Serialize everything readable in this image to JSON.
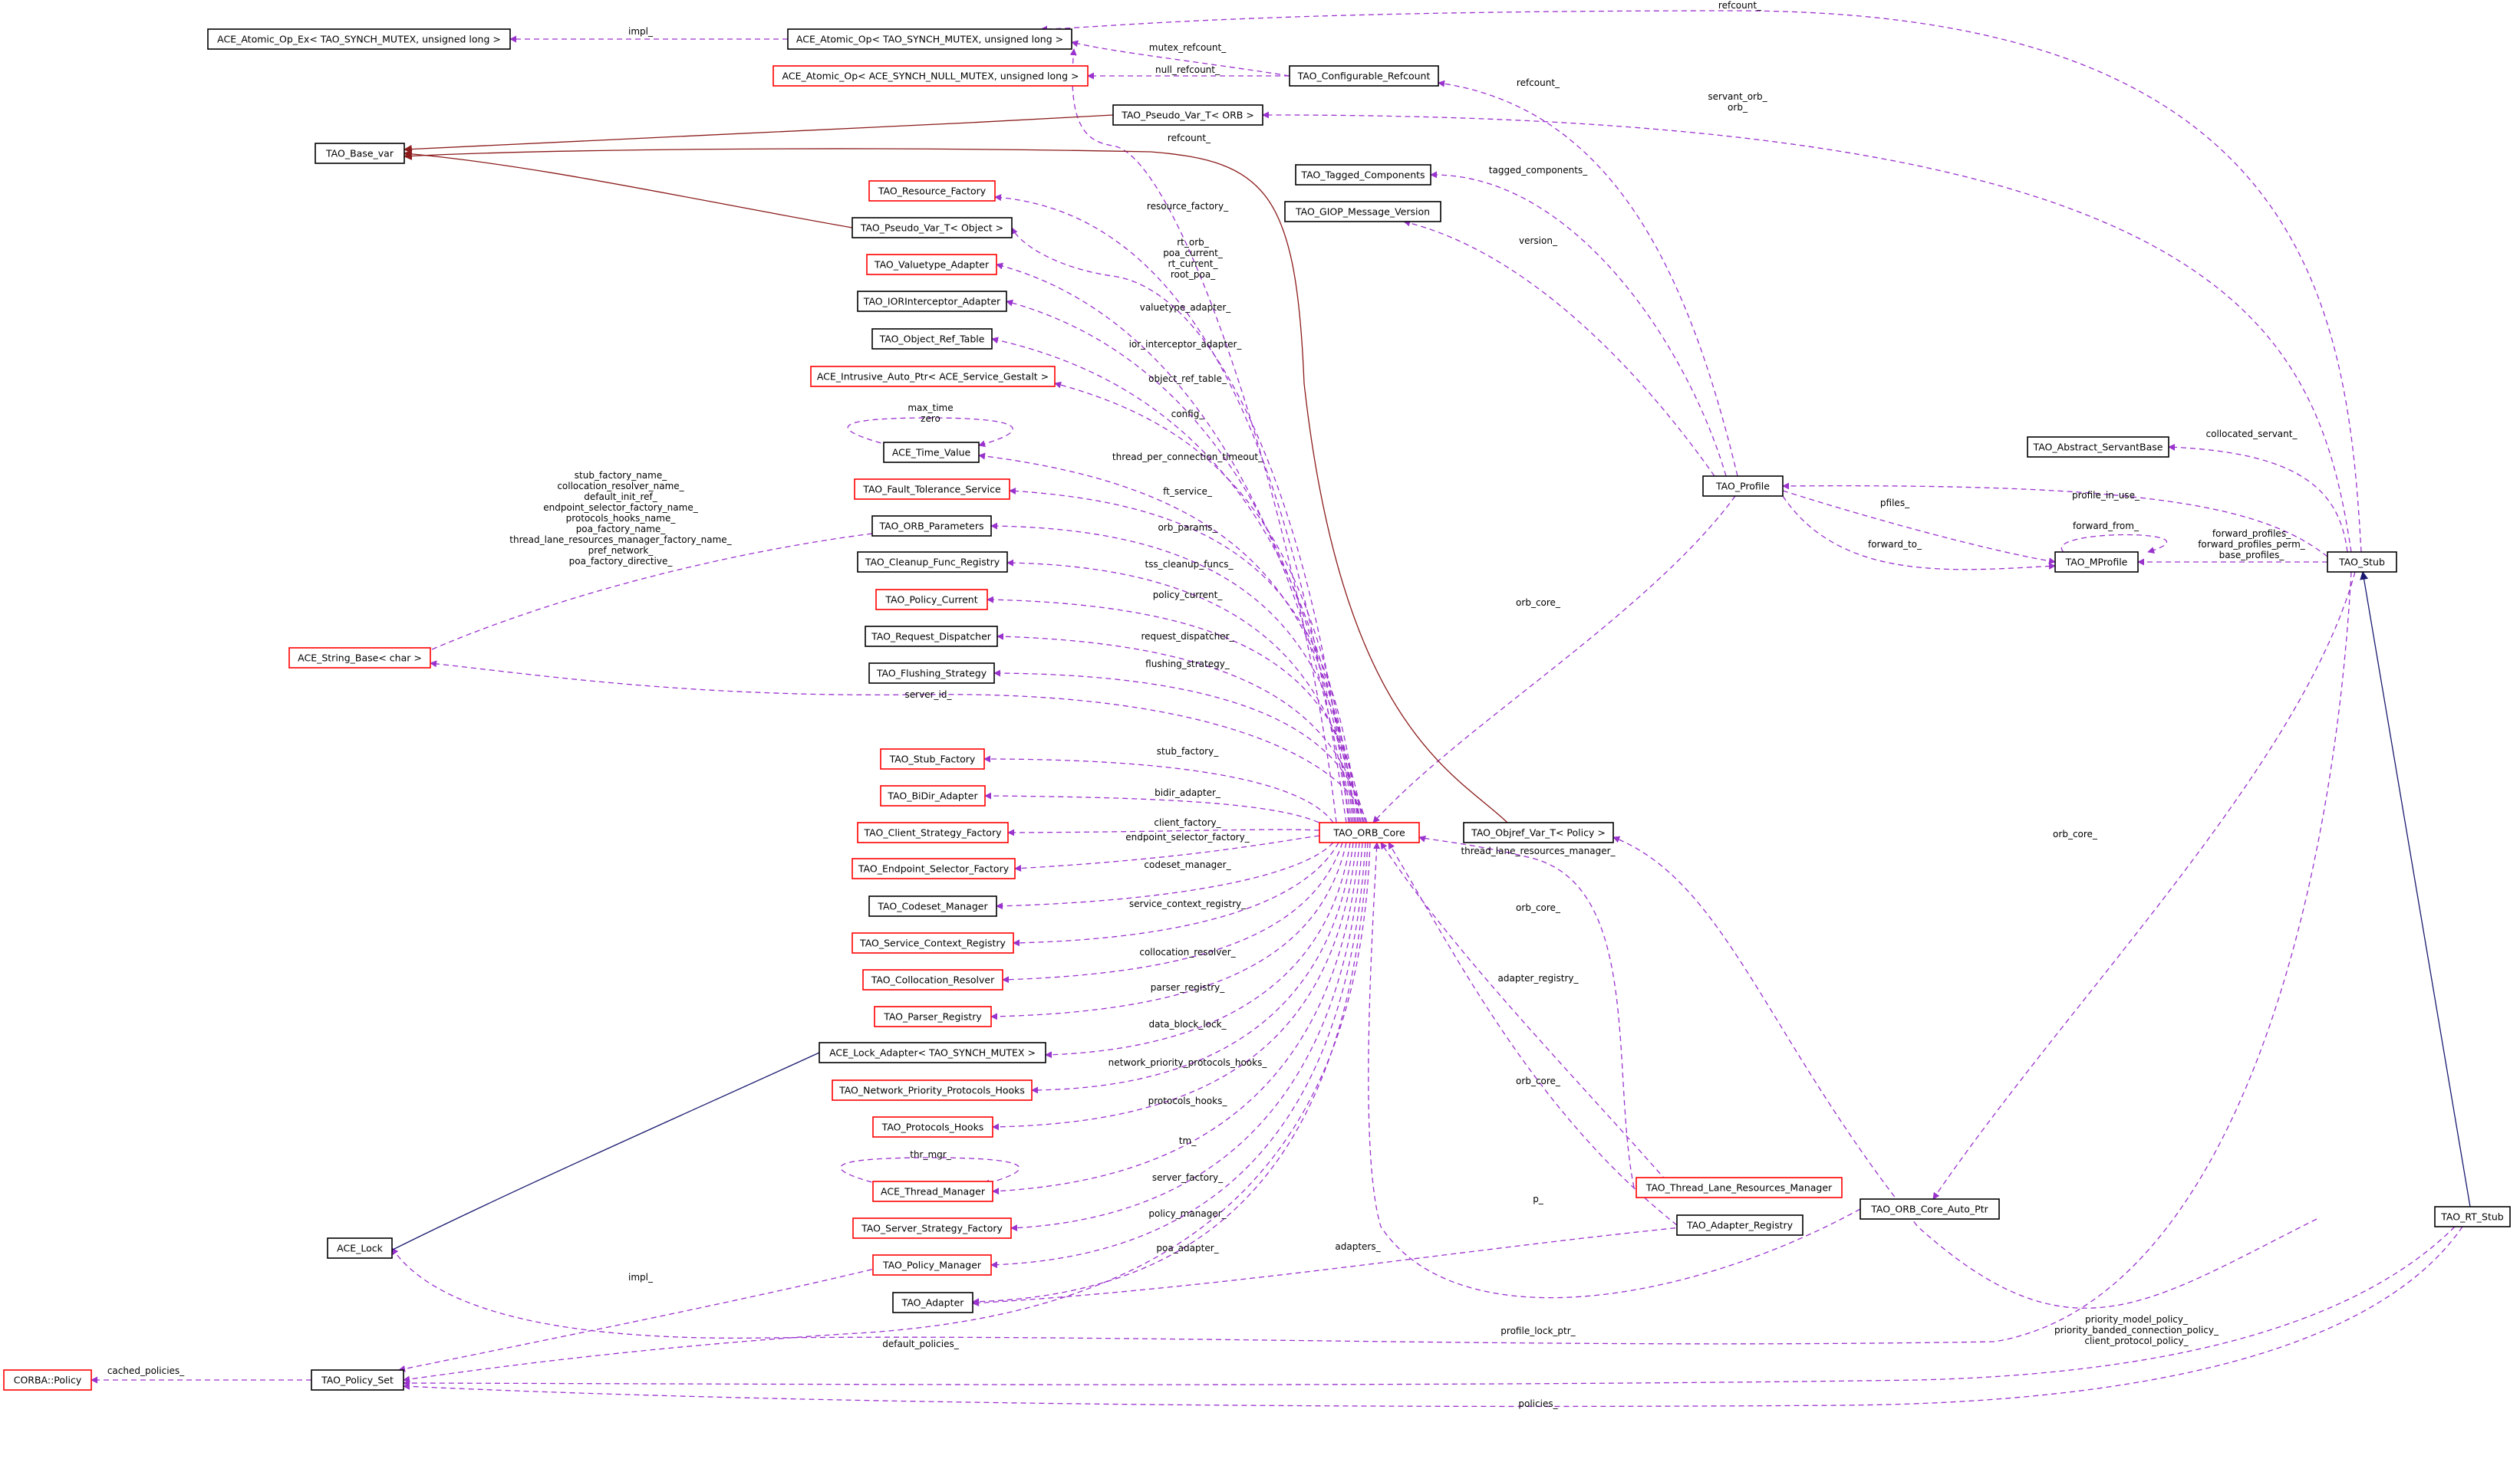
{
  "colors": {
    "usage_edge": "#9a32cd",
    "inherit_edge": "#191970",
    "template_edge": "#8b1a1a",
    "complete_border": "#000000",
    "incomplete_border": "#ff0000",
    "highlight_fill": "#bfbfbf"
  },
  "nodes": {
    "ace_atomic_op_ex": "ACE_Atomic_Op_Ex< TAO_SYNCH_MUTEX, unsigned long >",
    "ace_atomic_op_mutex": "ACE_Atomic_Op< TAO_SYNCH_MUTEX, unsigned long >",
    "ace_atomic_op_null": "ACE_Atomic_Op< ACE_SYNCH_NULL_MUTEX, unsigned long >",
    "tao_configurable_refcount": "TAO_Configurable_Refcount",
    "tao_pseudo_var_orb": "TAO_Pseudo_Var_T< ORB >",
    "tao_base_var": "TAO_Base_var",
    "tao_resource_factory": "TAO_Resource_Factory",
    "tao_tagged_components": "TAO_Tagged_Components",
    "tao_giop_message_version": "TAO_GIOP_Message_Version",
    "tao_pseudo_var_object": "TAO_Pseudo_Var_T< Object >",
    "tao_valuetype_adapter": "TAO_Valuetype_Adapter",
    "tao_iorinterceptor_adapter": "TAO_IORInterceptor_Adapter",
    "tao_object_ref_table": "TAO_Object_Ref_Table",
    "ace_intrusive_auto_ptr": "ACE_Intrusive_Auto_Ptr< ACE_Service_Gestalt >",
    "ace_time_value": "ACE_Time_Value",
    "tao_fault_tolerance_service": "TAO_Fault_Tolerance_Service",
    "tao_orb_parameters": "TAO_ORB_Parameters",
    "tao_cleanup_func_registry": "TAO_Cleanup_Func_Registry",
    "tao_policy_current": "TAO_Policy_Current",
    "tao_request_dispatcher": "TAO_Request_Dispatcher",
    "tao_flushing_strategy": "TAO_Flushing_Strategy",
    "ace_string_base": "ACE_String_Base< char >",
    "tao_stub_factory": "TAO_Stub_Factory",
    "tao_bidir_adapter": "TAO_BiDir_Adapter",
    "tao_client_strategy_factory": "TAO_Client_Strategy_Factory",
    "tao_endpoint_selector_factory": "TAO_Endpoint_Selector_Factory",
    "tao_codeset_manager": "TAO_Codeset_Manager",
    "tao_service_context_registry": "TAO_Service_Context_Registry",
    "tao_collocation_resolver": "TAO_Collocation_Resolver",
    "tao_parser_registry": "TAO_Parser_Registry",
    "ace_lock_adapter": "ACE_Lock_Adapter< TAO_SYNCH_MUTEX >",
    "tao_network_priority_protocols_hooks": "TAO_Network_Priority_Protocols_Hooks",
    "tao_protocols_hooks": "TAO_Protocols_Hooks",
    "ace_thread_manager": "ACE_Thread_Manager",
    "tao_server_strategy_factory": "TAO_Server_Strategy_Factory",
    "tao_policy_manager": "TAO_Policy_Manager",
    "tao_adapter": "TAO_Adapter",
    "ace_lock": "ACE_Lock",
    "corba_policy": "CORBA::Policy",
    "tao_policy_set": "TAO_Policy_Set",
    "tao_orb_core": "TAO_ORB_Core",
    "tao_objref_var_policy": "TAO_Objref_Var_T< Policy >",
    "tao_profile": "TAO_Profile",
    "tao_abstract_servantbase": "TAO_Abstract_ServantBase",
    "tao_mprofile": "TAO_MProfile",
    "tao_stub": "TAO_Stub",
    "tao_thread_lane_resources_manager": "TAO_Thread_Lane_Resources_Manager",
    "tao_adapter_registry": "TAO_Adapter_Registry",
    "tao_orb_core_auto_ptr": "TAO_ORB_Core_Auto_Ptr",
    "tao_rt_stub": "TAO_RT_Stub"
  },
  "labels": {
    "refcount_top": "refcount_",
    "impl_atomic": "impl_",
    "mutex_refcount": "mutex_refcount_",
    "null_refcount": "null_refcount_",
    "refcount_cfg": "refcount_",
    "servant_orb": "servant_orb_\norb_",
    "refcount_mid": "refcount_",
    "tagged_components": "tagged_components_",
    "resource_factory": "resource_factory_",
    "version": "version_",
    "rt_orb": "rt_orb_\npoa_current_\nrt_current_\nroot_poa_",
    "valuetype_adapter": "valuetype_adapter_",
    "ior_interceptor_adapter": "ior_interceptor_adapter_",
    "object_ref_table": "object_ref_table_",
    "max_time_zero": "max_time\nzero",
    "config": "config_",
    "thread_per_connection_timeout": "thread_per_connection_timeout_",
    "string_names": "stub_factory_name_\ncollocation_resolver_name_\ndefault_init_ref_\nendpoint_selector_factory_name_\nprotocols_hooks_name_\npoa_factory_name_\nthread_lane_resources_manager_factory_name_\npref_network_\npoa_factory_directive_",
    "ft_service": "ft_service_",
    "orb_params": "orb_params_",
    "tss_cleanup_funcs": "tss_cleanup_funcs_",
    "policy_current": "policy_current_",
    "request_dispatcher": "request_dispatcher_",
    "flushing_strategy": "flushing_strategy_",
    "server_id": "server_id_",
    "stub_factory": "stub_factory_",
    "bidir_adapter": "bidir_adapter_",
    "client_factory": "client_factory_",
    "endpoint_selector_factory": "endpoint_selector_factory_",
    "codeset_manager": "codeset_manager_",
    "service_context_registry": "service_context_registry_",
    "collocation_resolver": "collocation_resolver_",
    "parser_registry": "parser_registry_",
    "data_block_lock": "data_block_lock_",
    "network_priority_protocols_hooks": "network_priority_protocols_hooks_",
    "protocols_hooks": "protocols_hooks_",
    "thr_mgr": "thr_mgr_",
    "tm": "tm_",
    "server_factory": "server_factory_",
    "policy_manager": "policy_manager_",
    "poa_adapter": "poa_adapter_",
    "impl_lock": "impl_",
    "default_policies": "default_policies_",
    "cached_policies": "cached_policies_",
    "orb_core_profile": "orb_core_",
    "thread_lane_resources_manager": "thread_lane_resources_manager_",
    "orb_core_objref": "orb_core_",
    "adapter_registry": "adapter_registry_",
    "orb_core_tlrm": "orb_core_",
    "p": "p_",
    "adapters": "adapters_",
    "collocated_servant": "collocated_servant_",
    "profile_in_use": "profile_in_use_",
    "pfiles": "pfiles_",
    "forward_from": "forward_from_",
    "forward_to": "forward_to_",
    "forward_profiles": "forward_profiles_\nforward_profiles_perm_\nbase_profiles_",
    "orb_core_stub": "orb_core_",
    "profile_lock_ptr": "profile_lock_ptr_",
    "priority_policies": "priority_model_policy_\npriority_banded_connection_policy_\nclient_protocol_policy_",
    "policies": "policies_"
  }
}
